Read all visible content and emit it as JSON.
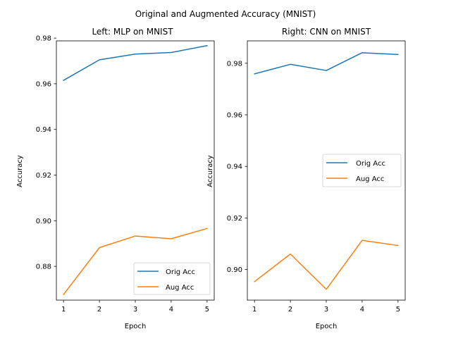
{
  "figure": {
    "suptitle": "Original and Augmented Accuracy (MNIST)"
  },
  "chart_data": [
    {
      "type": "line",
      "title": "Left: MLP on MNIST",
      "xlabel": "Epoch",
      "ylabel": "Accuracy",
      "x": [
        1,
        2,
        3,
        4,
        5
      ],
      "x_ticks": [
        "1",
        "2",
        "3",
        "4",
        "5"
      ],
      "y_ticks": [
        "0.88",
        "0.90",
        "0.92",
        "0.94",
        "0.96",
        "0.98"
      ],
      "ylim": [
        0.8652,
        0.9788
      ],
      "xlim": [
        0.8,
        5.2
      ],
      "grid": false,
      "legend_position": "lower-right",
      "series": [
        {
          "name": "Orig Acc",
          "color": "#1f77b4",
          "values": [
            0.9615,
            0.9705,
            0.973,
            0.9737,
            0.9767
          ]
        },
        {
          "name": "Aug Acc",
          "color": "#ff7f0e",
          "values": [
            0.8677,
            0.8882,
            0.8933,
            0.8921,
            0.8966
          ]
        }
      ]
    },
    {
      "type": "line",
      "title": "Right: CNN on MNIST",
      "xlabel": "Epoch",
      "ylabel": "Accuracy",
      "x": [
        1,
        2,
        3,
        4,
        5
      ],
      "x_ticks": [
        "1",
        "2",
        "3",
        "4",
        "5"
      ],
      "y_ticks": [
        "0.90",
        "0.92",
        "0.94",
        "0.96",
        "0.98"
      ],
      "ylim": [
        0.8881,
        0.9887
      ],
      "xlim": [
        0.8,
        5.2
      ],
      "grid": false,
      "legend_position": "center-right",
      "series": [
        {
          "name": "Orig Acc",
          "color": "#1f77b4",
          "values": [
            0.9759,
            0.9796,
            0.9772,
            0.9841,
            0.9834
          ]
        },
        {
          "name": "Aug Acc",
          "color": "#ff7f0e",
          "values": [
            0.8953,
            0.906,
            0.8923,
            0.9113,
            0.9093
          ]
        }
      ]
    }
  ]
}
